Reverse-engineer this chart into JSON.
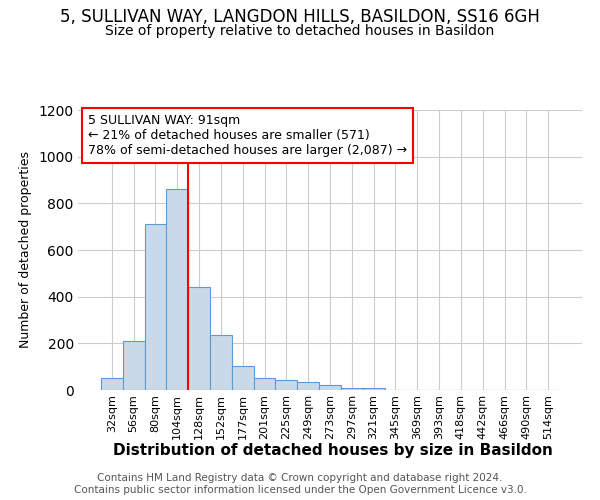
{
  "title1": "5, SULLIVAN WAY, LANGDON HILLS, BASILDON, SS16 6GH",
  "title2": "Size of property relative to detached houses in Basildon",
  "xlabel": "Distribution of detached houses by size in Basildon",
  "ylabel": "Number of detached properties",
  "categories": [
    "32sqm",
    "56sqm",
    "80sqm",
    "104sqm",
    "128sqm",
    "152sqm",
    "177sqm",
    "201sqm",
    "225sqm",
    "249sqm",
    "273sqm",
    "297sqm",
    "321sqm",
    "345sqm",
    "369sqm",
    "393sqm",
    "418sqm",
    "442sqm",
    "466sqm",
    "490sqm",
    "514sqm"
  ],
  "values": [
    50,
    210,
    710,
    860,
    440,
    235,
    105,
    50,
    45,
    35,
    20,
    10,
    10,
    0,
    0,
    0,
    0,
    0,
    0,
    0,
    0
  ],
  "bar_color": "#c9d9e8",
  "bar_edge_color": "#5b9bd5",
  "red_line_x": 3.5,
  "annotation_text": "5 SULLIVAN WAY: 91sqm\n← 21% of detached houses are smaller (571)\n78% of semi-detached houses are larger (2,087) →",
  "ylim": [
    0,
    1200
  ],
  "yticks": [
    0,
    200,
    400,
    600,
    800,
    1000,
    1200
  ],
  "footer": "Contains HM Land Registry data © Crown copyright and database right 2024.\nContains public sector information licensed under the Open Government Licence v3.0.",
  "background_color": "#ffffff",
  "plot_bg_color": "#ffffff",
  "grid_color": "#cccccc",
  "title1_fontsize": 12,
  "title2_fontsize": 10,
  "xlabel_fontsize": 11,
  "ylabel_fontsize": 9,
  "tick_fontsize": 8,
  "footer_fontsize": 7.5
}
